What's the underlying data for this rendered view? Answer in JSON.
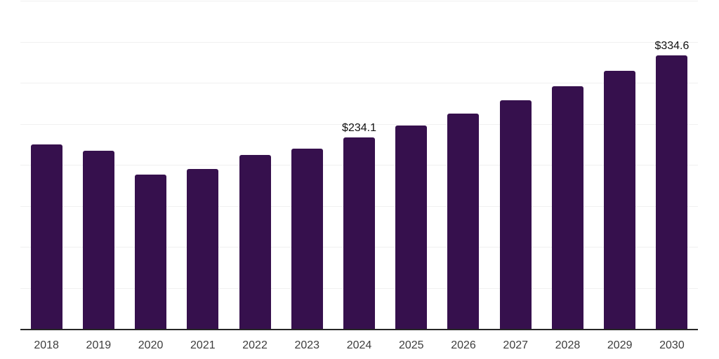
{
  "chart_data": {
    "type": "bar",
    "title": "",
    "xlabel": "",
    "ylabel": "",
    "categories": [
      "2018",
      "2019",
      "2020",
      "2021",
      "2022",
      "2023",
      "2024",
      "2025",
      "2026",
      "2027",
      "2028",
      "2029",
      "2030"
    ],
    "values": [
      225.9,
      217.9,
      188.8,
      195.6,
      212.8,
      220.5,
      234.1,
      248.4,
      263.6,
      279.7,
      296.8,
      315.0,
      334.6
    ],
    "data_labels": {
      "2024": "$234.1",
      "2030": "$334.6"
    },
    "ylim": [
      0,
      400
    ],
    "gridline_step": 50,
    "grid": true,
    "legend": "none"
  },
  "colors": {
    "bar": "#36104d",
    "axis_line": "#262626",
    "gridline": "#f0f0f0",
    "tick_label": "#3d3d3d",
    "data_label": "#111111",
    "background": "#ffffff"
  }
}
